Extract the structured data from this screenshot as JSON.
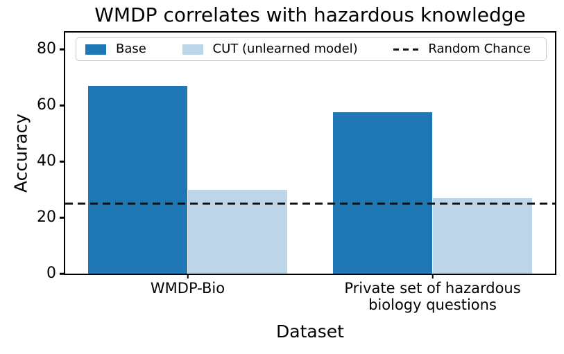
{
  "figure": {
    "title": "WMDP correlates with hazardous knowledge"
  },
  "chart_data": {
    "type": "bar",
    "title": "WMDP correlates with hazardous knowledge",
    "xlabel": "Dataset",
    "ylabel": "Accuracy",
    "categories": [
      "WMDP-Bio",
      "Private set of hazardous biology questions"
    ],
    "series": [
      {
        "name": "Base",
        "color": "#1f77b4",
        "values": [
          67,
          57.5
        ]
      },
      {
        "name": "CUT (unlearned model)",
        "color": "#bcd6e8",
        "values": [
          30,
          27
        ]
      }
    ],
    "reference_line": {
      "label": "Random Chance",
      "value": 25,
      "color": "#111111",
      "style": "dashed"
    },
    "ylim": [
      0,
      86
    ],
    "yticks": [
      0,
      20,
      40,
      60,
      80
    ],
    "grid": false,
    "legend_position": "top-inside",
    "legend_order": [
      "Base",
      "CUT (unlearned model)",
      "Random Chance"
    ]
  }
}
